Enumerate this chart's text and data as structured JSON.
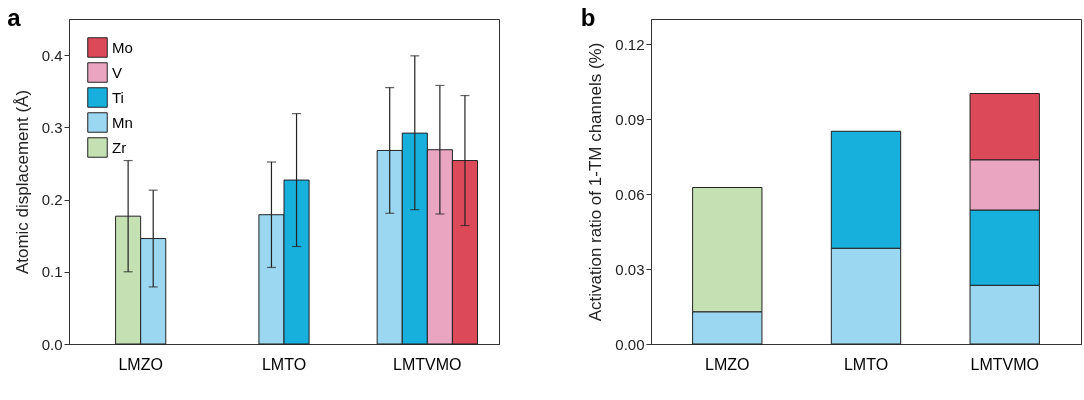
{
  "chart_data": [
    {
      "type": "bar",
      "title": "a",
      "ylabel": "Atomic displacement (Å)",
      "categories": [
        "LMZO",
        "LMTO",
        "LMTVMO"
      ],
      "ylim": [
        0,
        0.45
      ],
      "yticks": [
        {
          "value": 0,
          "label": "0.0"
        },
        0.1,
        0.2,
        0.3,
        0.4
      ],
      "legend": "top left",
      "grid": false,
      "series": [
        {
          "name": "Zr",
          "color": "#c5e0b3",
          "values": [
            0.177,
            null,
            null
          ],
          "errors": [
            [
              0.1,
              0.254
            ],
            null,
            null
          ]
        },
        {
          "name": "Mn",
          "color": "#9bd7f0",
          "values": [
            0.146,
            0.179,
            0.268
          ],
          "errors": [
            [
              0.079,
              0.213
            ],
            [
              0.106,
              0.252
            ],
            [
              0.181,
              0.355
            ]
          ]
        },
        {
          "name": "Ti",
          "color": "#17afdc",
          "values": [
            null,
            0.227,
            0.292
          ],
          "errors": [
            null,
            [
              0.135,
              0.319
            ],
            [
              0.186,
              0.399
            ]
          ]
        },
        {
          "name": "V",
          "color": "#eaa5c1",
          "values": [
            null,
            null,
            0.269
          ],
          "errors": [
            null,
            null,
            [
              0.18,
              0.358
            ]
          ]
        },
        {
          "name": "Mo",
          "color": "#dc4a5a",
          "values": [
            null,
            null,
            0.254
          ],
          "errors": [
            null,
            null,
            [
              0.164,
              0.344
            ]
          ]
        }
      ]
    },
    {
      "type": "bar",
      "title": "b",
      "ylabel": "Activation ratio of 1-TM channels (%)",
      "categories": [
        "LMZO",
        "LMTO",
        "LMTVMO"
      ],
      "ylim": [
        0,
        0.13
      ],
      "yticks": [
        {
          "value": 0,
          "label": "0.00"
        },
        {
          "value": 0.03,
          "label": "0.03"
        },
        {
          "value": 0.06,
          "label": "0.06"
        },
        {
          "value": 0.09,
          "label": "0.09"
        },
        {
          "value": 0.12,
          "label": "0.12"
        }
      ],
      "stacked": true,
      "legend": "top left",
      "grid": false,
      "series": [
        {
          "name": "Mn",
          "color": "#9bd7f0",
          "values": [
            0.0129,
            0.0383,
            0.0235
          ]
        },
        {
          "name": "Zr",
          "color": "#c5e0b3",
          "values": [
            0.0497,
            null,
            null
          ]
        },
        {
          "name": "Ti",
          "color": "#17afdc",
          "values": [
            null,
            0.0468,
            0.0301
          ]
        },
        {
          "name": "V",
          "color": "#eaa5c1",
          "values": [
            null,
            null,
            0.0201
          ]
        },
        {
          "name": "Mo",
          "color": "#dc4a5a",
          "values": [
            null,
            null,
            0.0265
          ]
        }
      ]
    }
  ]
}
